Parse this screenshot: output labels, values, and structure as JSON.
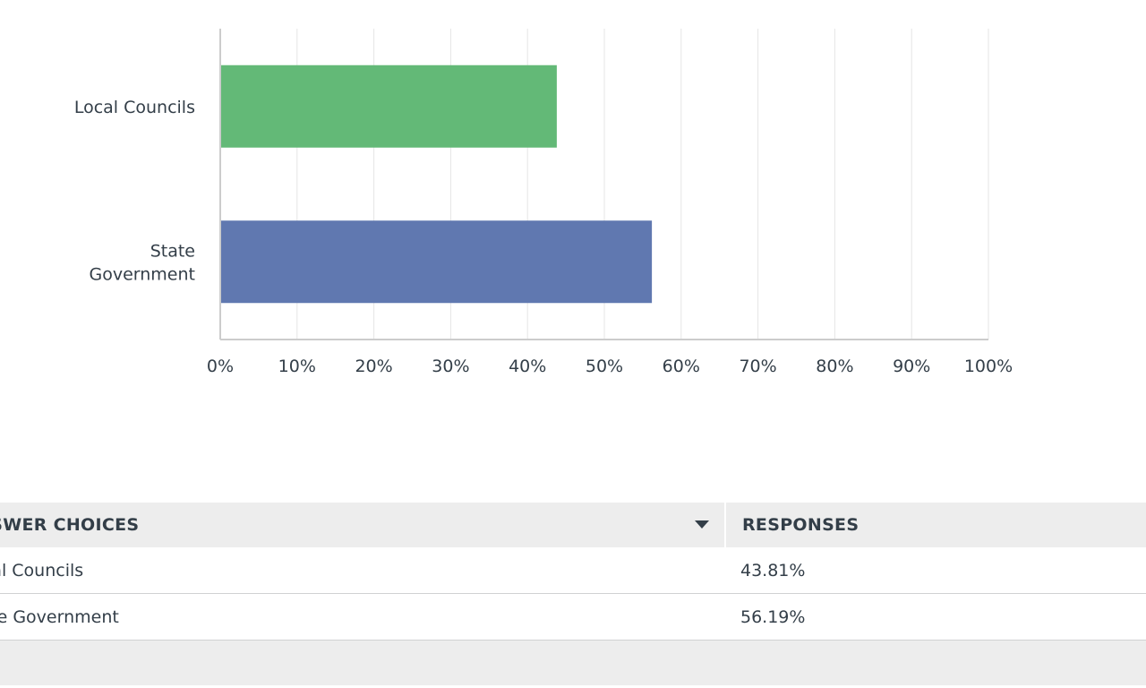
{
  "chart_data": {
    "type": "bar",
    "orientation": "horizontal",
    "categories": [
      "Local Councils",
      "State Government"
    ],
    "category_lines": [
      [
        "Local Councils"
      ],
      [
        "State",
        "Government"
      ]
    ],
    "values": [
      43.81,
      56.19
    ],
    "colors": [
      "#63b977",
      "#6078b0"
    ],
    "xlim": [
      0,
      100
    ],
    "xticks": [
      0,
      10,
      20,
      30,
      40,
      50,
      60,
      70,
      80,
      90,
      100
    ],
    "tick_suffix": "%",
    "grid": true
  },
  "table": {
    "headers": {
      "choices": "ANSWER CHOICES",
      "responses": "RESPONSES"
    },
    "rows": [
      {
        "choice": "Local Councils",
        "response": "43.81%"
      },
      {
        "choice": "State Government",
        "response": "56.19%"
      }
    ]
  },
  "colors": {
    "header_bg": "#ededed",
    "text": "#333e48",
    "grid": "#e5e5e5",
    "axis": "#cccccc"
  }
}
